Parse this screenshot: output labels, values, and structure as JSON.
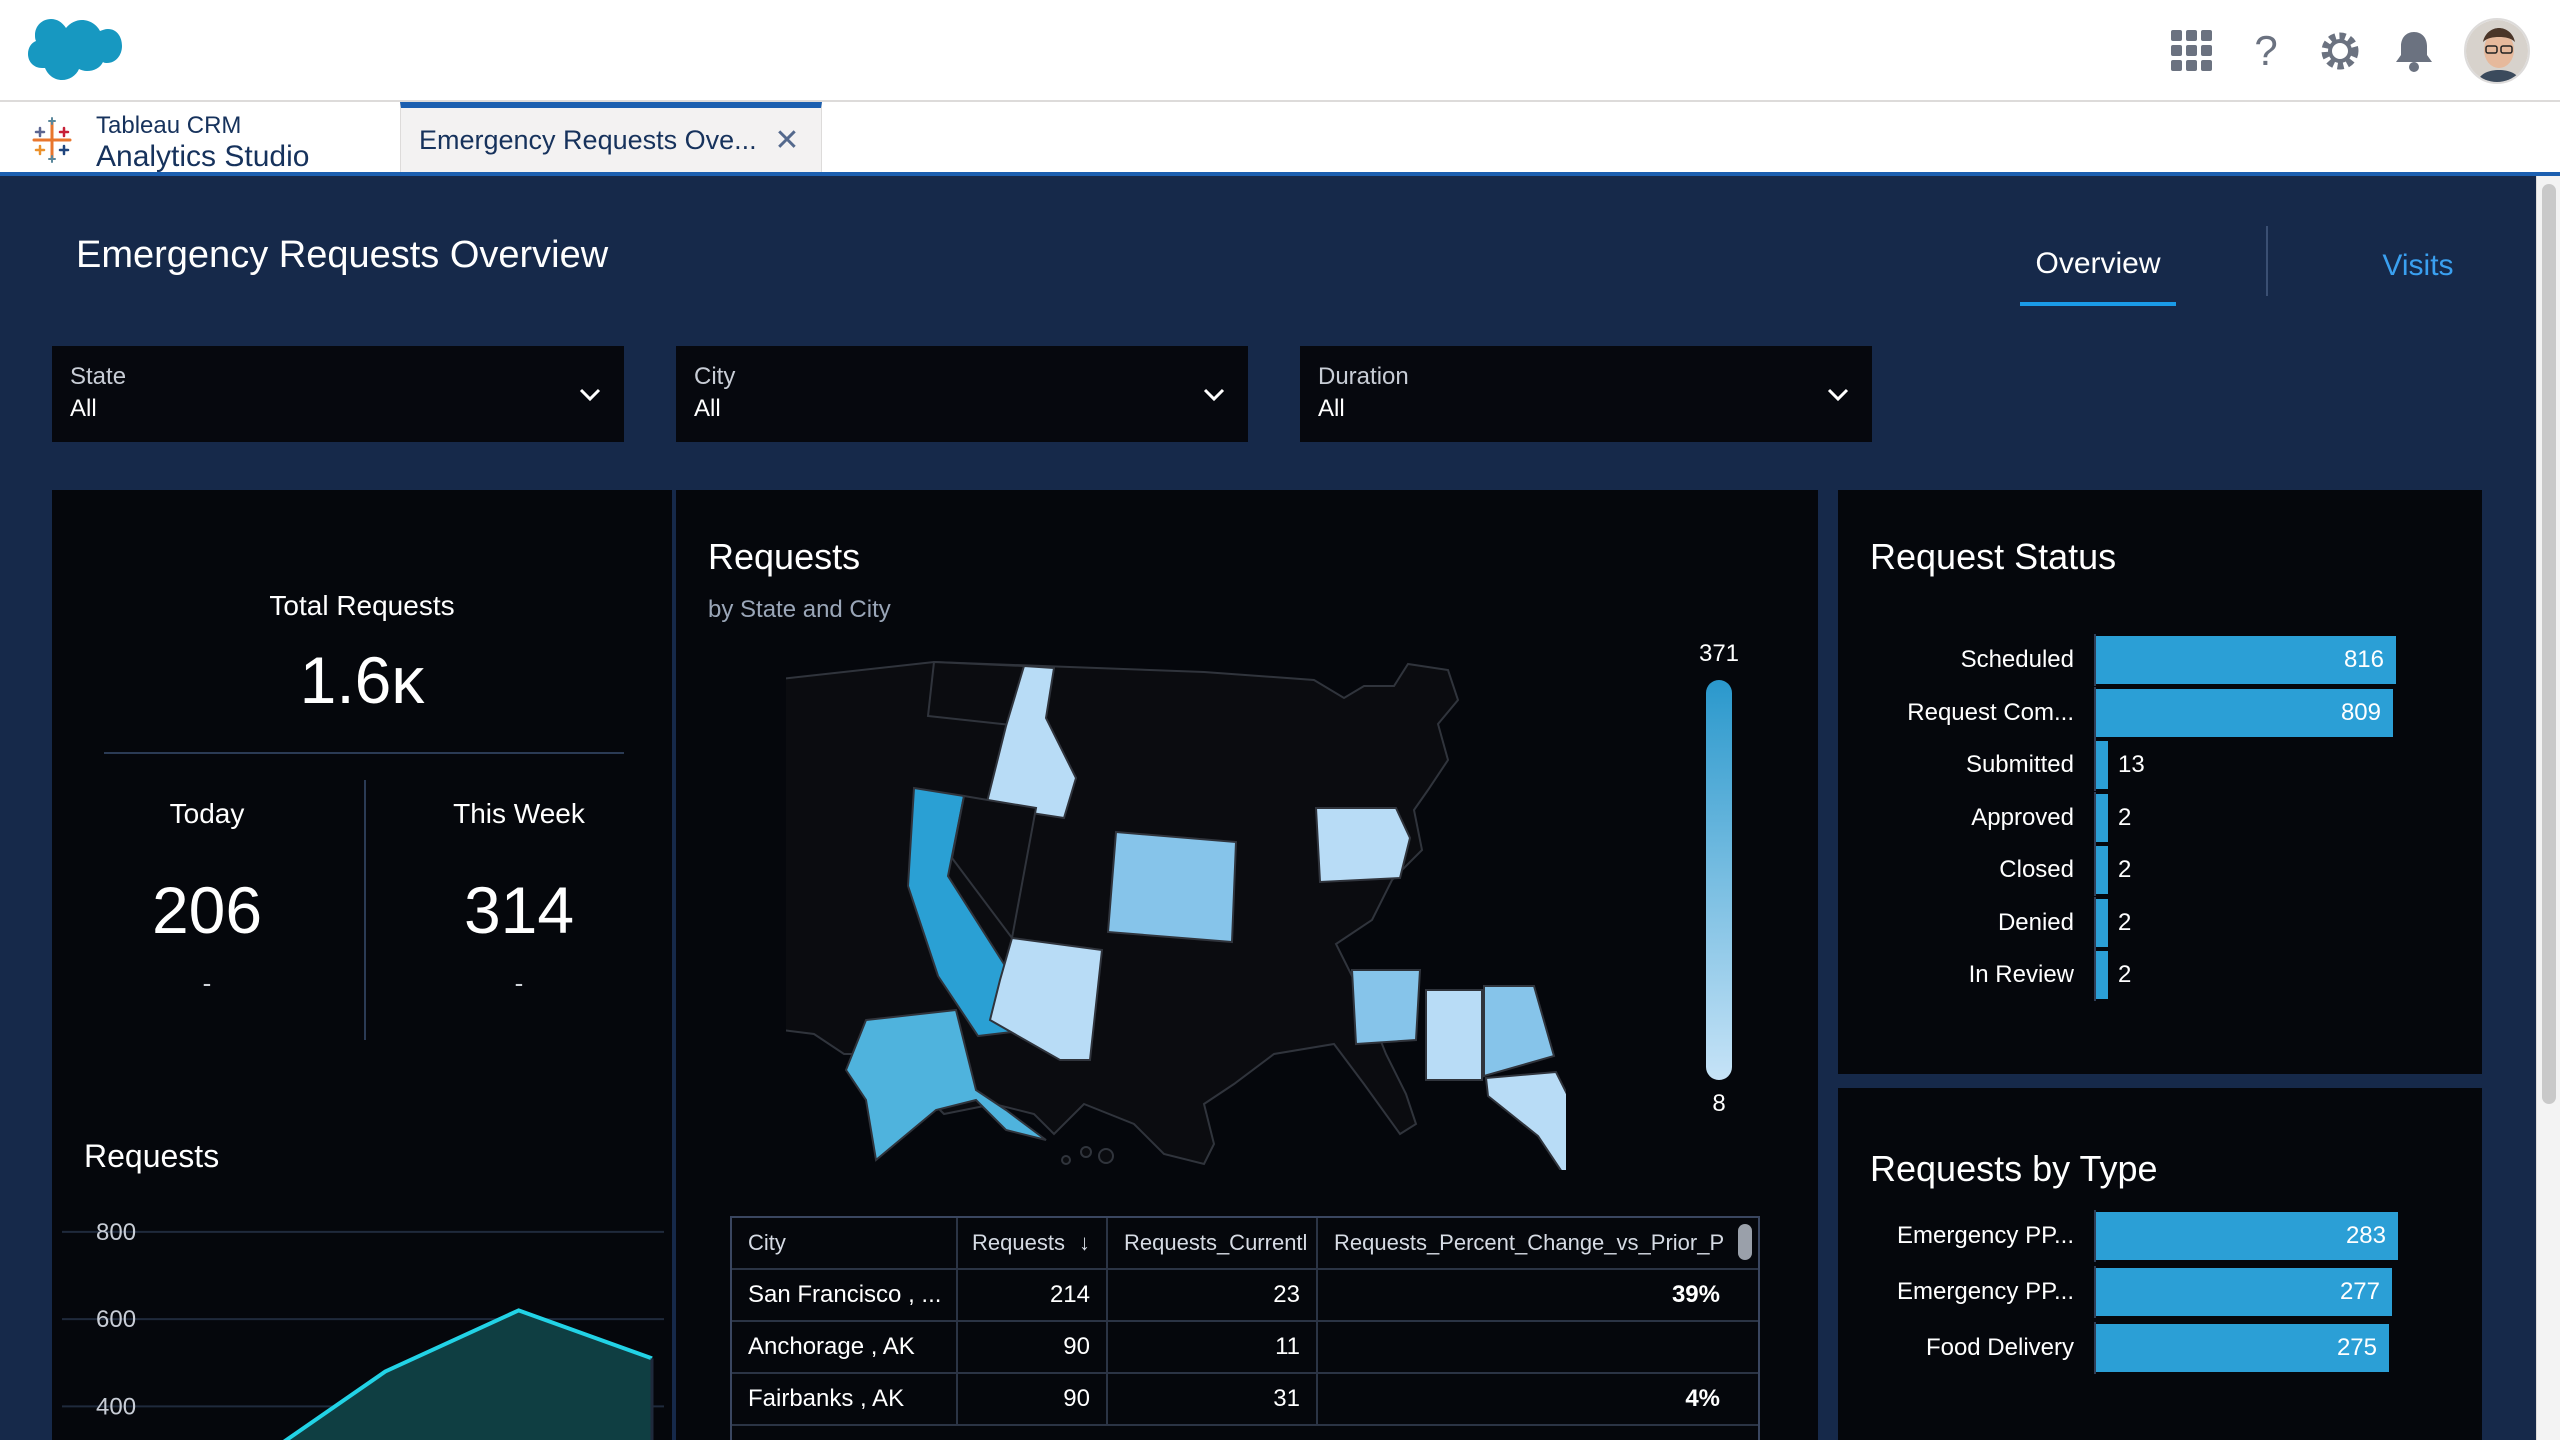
{
  "colors": {
    "brand_blue": "#1b5fb0",
    "dash_bg": "#16294a",
    "panel_bg": "#05070c",
    "bar_blue": "#2b9fd6",
    "accent_link": "#3aa0f0"
  },
  "app": {
    "name_line1": "Tableau CRM",
    "name_line2": "Analytics Studio"
  },
  "workspace_tab": {
    "label": "Emergency Requests Ove...",
    "close_icon": "close-icon"
  },
  "header_icons": [
    "app-grid-icon",
    "help-icon",
    "setup-gear-icon",
    "notification-bell-icon",
    "user-avatar"
  ],
  "dashboard": {
    "title": "Emergency Requests Overview",
    "tabs": [
      {
        "label": "Overview",
        "active": true
      },
      {
        "label": "Visits",
        "active": false
      }
    ]
  },
  "filters": [
    {
      "label": "State",
      "value": "All"
    },
    {
      "label": "City",
      "value": "All"
    },
    {
      "label": "Duration",
      "value": "All"
    }
  ],
  "kpis": {
    "total_label": "Total Requests",
    "total_value": "1.6ĸ",
    "today": {
      "label": "Today",
      "value": "206",
      "delta": "-"
    },
    "this_week": {
      "label": "This Week",
      "value": "314",
      "delta": "-"
    }
  },
  "requests_chart": {
    "title": "Requests",
    "chart_data": {
      "type": "area",
      "y_ticks": [
        "800",
        "600",
        "400"
      ],
      "ylim": [
        300,
        850
      ],
      "values": [
        300,
        480,
        620,
        510
      ]
    }
  },
  "map": {
    "title": "Requests",
    "subtitle": "by State and City",
    "legend_max": "371",
    "legend_min": "8"
  },
  "city_table": {
    "columns": [
      "City",
      "Requests",
      "Requests_Currentl",
      "Requests_Percent_Change_vs_Prior_P"
    ],
    "rows": [
      {
        "city": "San Francisco , ...",
        "requests": "214",
        "current": "23",
        "pct": "39%"
      },
      {
        "city": "Anchorage , AK",
        "requests": "90",
        "current": "11",
        "pct": ""
      },
      {
        "city": "Fairbanks , AK",
        "requests": "90",
        "current": "31",
        "pct": "4%"
      }
    ]
  },
  "request_status": {
    "title": "Request Status",
    "chart_data": {
      "type": "bar",
      "categories": [
        "Scheduled",
        "Request Com...",
        "Submitted",
        "Approved",
        "Closed",
        "Denied",
        "In Review"
      ],
      "values": [
        816,
        809,
        13,
        2,
        2,
        2,
        2
      ]
    }
  },
  "requests_by_type": {
    "title": "Requests by Type",
    "chart_data": {
      "type": "bar",
      "categories": [
        "Emergency PP...",
        "Emergency PP...",
        "Food Delivery"
      ],
      "values": [
        283,
        277,
        275
      ]
    }
  }
}
